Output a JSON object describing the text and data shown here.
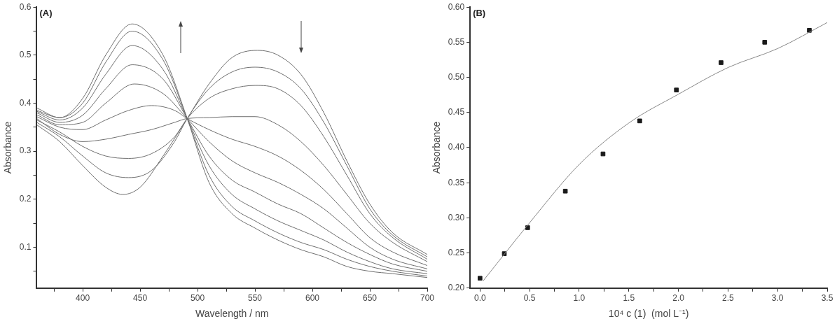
{
  "chart_data": [
    {
      "type": "line",
      "title": "(A)",
      "xlabel": "Wavelength / nm",
      "ylabel": "Absorbance",
      "marker": "none",
      "line_style": "solid",
      "xlim": [
        360,
        700
      ],
      "ylim": [
        0.015,
        0.6
      ],
      "xticks": [
        {
          "value": 375,
          "label": null
        },
        400,
        {
          "value": 425,
          "label": null
        },
        450,
        {
          "value": 475,
          "label": null
        },
        500,
        {
          "value": 525,
          "label": null
        },
        550,
        {
          "value": 575,
          "label": null
        },
        600,
        {
          "value": 625,
          "label": null
        },
        650,
        {
          "value": 675,
          "label": null
        },
        700
      ],
      "yticks": [
        {
          "value": 0.05,
          "label": null
        },
        0.1,
        {
          "value": 0.15,
          "label": null
        },
        0.2,
        {
          "value": 0.25,
          "label": null
        },
        0.3,
        {
          "value": 0.35,
          "label": null
        },
        0.4,
        {
          "value": 0.45,
          "label": null
        },
        0.5,
        {
          "value": 0.55,
          "label": null
        },
        0.6
      ],
      "series": [
        {
          "color": "#6e6e6e",
          "x": [
            360,
            380,
            400,
            420,
            435,
            450,
            470,
            491,
            510,
            530,
            552,
            570,
            590,
            610,
            630,
            650,
            670,
            700
          ],
          "values": [
            0.355,
            0.32,
            0.27,
            0.225,
            0.21,
            0.225,
            0.29,
            0.368,
            0.44,
            0.495,
            0.51,
            0.5,
            0.46,
            0.38,
            0.28,
            0.19,
            0.13,
            0.085
          ]
        },
        {
          "color": "#6e6e6e",
          "x": [
            360,
            380,
            400,
            420,
            440,
            460,
            480,
            491,
            510,
            530,
            550,
            570,
            590,
            610,
            630,
            650,
            670,
            700
          ],
          "values": [
            0.36,
            0.33,
            0.29,
            0.255,
            0.245,
            0.26,
            0.32,
            0.368,
            0.43,
            0.465,
            0.475,
            0.465,
            0.43,
            0.36,
            0.27,
            0.18,
            0.125,
            0.08
          ]
        },
        {
          "color": "#6e6e6e",
          "x": [
            360,
            380,
            400,
            420,
            440,
            460,
            480,
            491,
            510,
            530,
            550,
            570,
            590,
            610,
            630,
            650,
            670,
            700
          ],
          "values": [
            0.365,
            0.34,
            0.31,
            0.29,
            0.285,
            0.295,
            0.33,
            0.368,
            0.41,
            0.43,
            0.437,
            0.43,
            0.395,
            0.33,
            0.25,
            0.17,
            0.12,
            0.075
          ]
        },
        {
          "color": "#6e6e6e",
          "x": [
            360,
            380,
            400,
            420,
            440,
            460,
            480,
            491,
            510,
            530,
            550,
            570,
            590,
            610,
            630,
            650,
            670,
            700
          ],
          "values": [
            0.368,
            0.335,
            0.32,
            0.325,
            0.335,
            0.345,
            0.36,
            0.368,
            0.37,
            0.372,
            0.372,
            0.355,
            0.32,
            0.27,
            0.21,
            0.15,
            0.11,
            0.07
          ]
        },
        {
          "color": "#6e6e6e",
          "x": [
            360,
            380,
            400,
            420,
            440,
            460,
            480,
            491,
            510,
            530,
            550,
            570,
            590,
            610,
            630,
            650,
            670,
            700
          ],
          "values": [
            0.372,
            0.35,
            0.345,
            0.365,
            0.385,
            0.395,
            0.385,
            0.368,
            0.345,
            0.325,
            0.31,
            0.29,
            0.26,
            0.22,
            0.17,
            0.12,
            0.09,
            0.062
          ]
        },
        {
          "color": "#6e6e6e",
          "x": [
            360,
            380,
            400,
            420,
            445,
            470,
            491,
            510,
            530,
            550,
            570,
            590,
            610,
            630,
            650,
            670,
            700
          ],
          "values": [
            0.376,
            0.355,
            0.36,
            0.4,
            0.44,
            0.42,
            0.368,
            0.32,
            0.28,
            0.255,
            0.235,
            0.21,
            0.18,
            0.14,
            0.1,
            0.075,
            0.055
          ]
        },
        {
          "color": "#6e6e6e",
          "x": [
            360,
            380,
            400,
            420,
            443,
            470,
            491,
            510,
            530,
            550,
            570,
            590,
            610,
            630,
            650,
            670,
            700
          ],
          "values": [
            0.38,
            0.36,
            0.375,
            0.43,
            0.48,
            0.45,
            0.368,
            0.29,
            0.24,
            0.215,
            0.19,
            0.17,
            0.14,
            0.11,
            0.085,
            0.065,
            0.05
          ]
        },
        {
          "color": "#6e6e6e",
          "x": [
            360,
            380,
            400,
            420,
            443,
            470,
            491,
            510,
            530,
            550,
            570,
            590,
            610,
            630,
            650,
            670,
            700
          ],
          "values": [
            0.383,
            0.365,
            0.39,
            0.46,
            0.52,
            0.47,
            0.368,
            0.27,
            0.21,
            0.18,
            0.155,
            0.135,
            0.115,
            0.09,
            0.07,
            0.055,
            0.045
          ]
        },
        {
          "color": "#6e6e6e",
          "x": [
            360,
            380,
            400,
            420,
            443,
            470,
            491,
            510,
            530,
            550,
            570,
            590,
            610,
            630,
            650,
            670,
            700
          ],
          "values": [
            0.385,
            0.37,
            0.4,
            0.485,
            0.55,
            0.49,
            0.368,
            0.25,
            0.185,
            0.155,
            0.13,
            0.11,
            0.095,
            0.075,
            0.06,
            0.05,
            0.04
          ]
        },
        {
          "color": "#6e6e6e",
          "x": [
            360,
            380,
            400,
            420,
            443,
            470,
            491,
            510,
            530,
            550,
            570,
            590,
            610,
            630,
            650,
            670,
            700
          ],
          "values": [
            0.39,
            0.37,
            0.41,
            0.5,
            0.565,
            0.5,
            0.368,
            0.235,
            0.17,
            0.14,
            0.115,
            0.095,
            0.08,
            0.06,
            0.05,
            0.045,
            0.037
          ]
        }
      ]
    },
    {
      "type": "scatter",
      "title": "(B)",
      "xlabel": "10⁴ c (1)  (mol L⁻¹)",
      "ylabel": "Absorbance",
      "xlim": [
        -0.1,
        3.5
      ],
      "ylim": [
        0.2,
        0.6
      ],
      "xticks": [
        {
          "value": 0,
          "label": "0.0"
        },
        {
          "value": 0.25,
          "label": null
        },
        {
          "value": 0.5,
          "label": "0.5"
        },
        {
          "value": 0.75,
          "label": null
        },
        {
          "value": 1,
          "label": "1.0"
        },
        {
          "value": 1.25,
          "label": null
        },
        {
          "value": 1.5,
          "label": "1.5"
        },
        {
          "value": 1.75,
          "label": null
        },
        {
          "value": 2,
          "label": "2.0"
        },
        {
          "value": 2.25,
          "label": null
        },
        {
          "value": 2.5,
          "label": "2.5"
        },
        {
          "value": 2.75,
          "label": null
        },
        {
          "value": 3,
          "label": "3.0"
        },
        {
          "value": 3.25,
          "label": null
        },
        {
          "value": 3.5,
          "label": "3.5"
        }
      ],
      "yticks": [
        {
          "value": 0.2,
          "label": "0.20"
        },
        {
          "value": 0.25,
          "label": "0.25"
        },
        {
          "value": 0.3,
          "label": "0.30"
        },
        {
          "value": 0.35,
          "label": "0.35"
        },
        {
          "value": 0.4,
          "label": "0.40"
        },
        {
          "value": 0.45,
          "label": "0.45"
        },
        {
          "value": 0.5,
          "label": "0.50"
        },
        {
          "value": 0.55,
          "label": "0.55"
        },
        {
          "value": 0.6,
          "label": "0.60"
        }
      ],
      "series": [
        {
          "type": "line",
          "marker": "none",
          "color": "#888888",
          "x": [
            0.03,
            0.5,
            1.0,
            1.5,
            2.0,
            2.5,
            3.0,
            3.5
          ],
          "values": [
            0.21,
            0.293,
            0.376,
            0.435,
            0.476,
            0.514,
            0.541,
            0.578
          ]
        },
        {
          "type": "scatter",
          "marker": "square",
          "color": "#1a1a1a",
          "x": [
            0,
            0.245,
            0.48,
            0.86,
            1.24,
            1.61,
            1.98,
            2.43,
            2.87,
            3.32
          ],
          "values": [
            0.214,
            0.249,
            0.286,
            0.338,
            0.391,
            0.438,
            0.482,
            0.521,
            0.55,
            0.567
          ]
        }
      ]
    }
  ]
}
